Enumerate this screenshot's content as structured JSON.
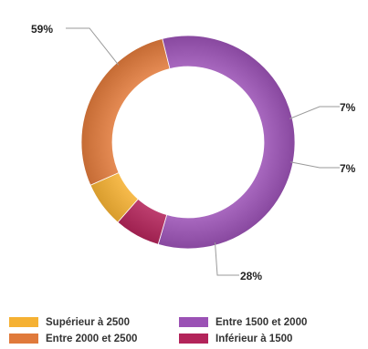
{
  "chart_data": {
    "type": "pie",
    "donut": true,
    "title": "",
    "slices": [
      {
        "label": "Entre 1500 et 2000",
        "value": 59,
        "display": "59%",
        "color": "#9b52b5"
      },
      {
        "label": "Inférieur à 1500",
        "value": 7,
        "display": "7%",
        "color": "#b3245a"
      },
      {
        "label": "Supérieur à 2500",
        "value": 7,
        "display": "7%",
        "color": "#f5b133"
      },
      {
        "label": "Entre 2000 et 2500",
        "value": 28,
        "display": "28%",
        "color": "#e07a3b"
      }
    ],
    "legend": {
      "placement": "bottom",
      "items": [
        {
          "label": "Supérieur à 2500",
          "color": "#f5b133"
        },
        {
          "label": "Entre 1500 et 2000",
          "color": "#9b52b5"
        },
        {
          "label": "Entre 2000 et 2500",
          "color": "#e07a3b"
        },
        {
          "label": "Inférieur à 1500",
          "color": "#b3245a"
        }
      ]
    }
  }
}
